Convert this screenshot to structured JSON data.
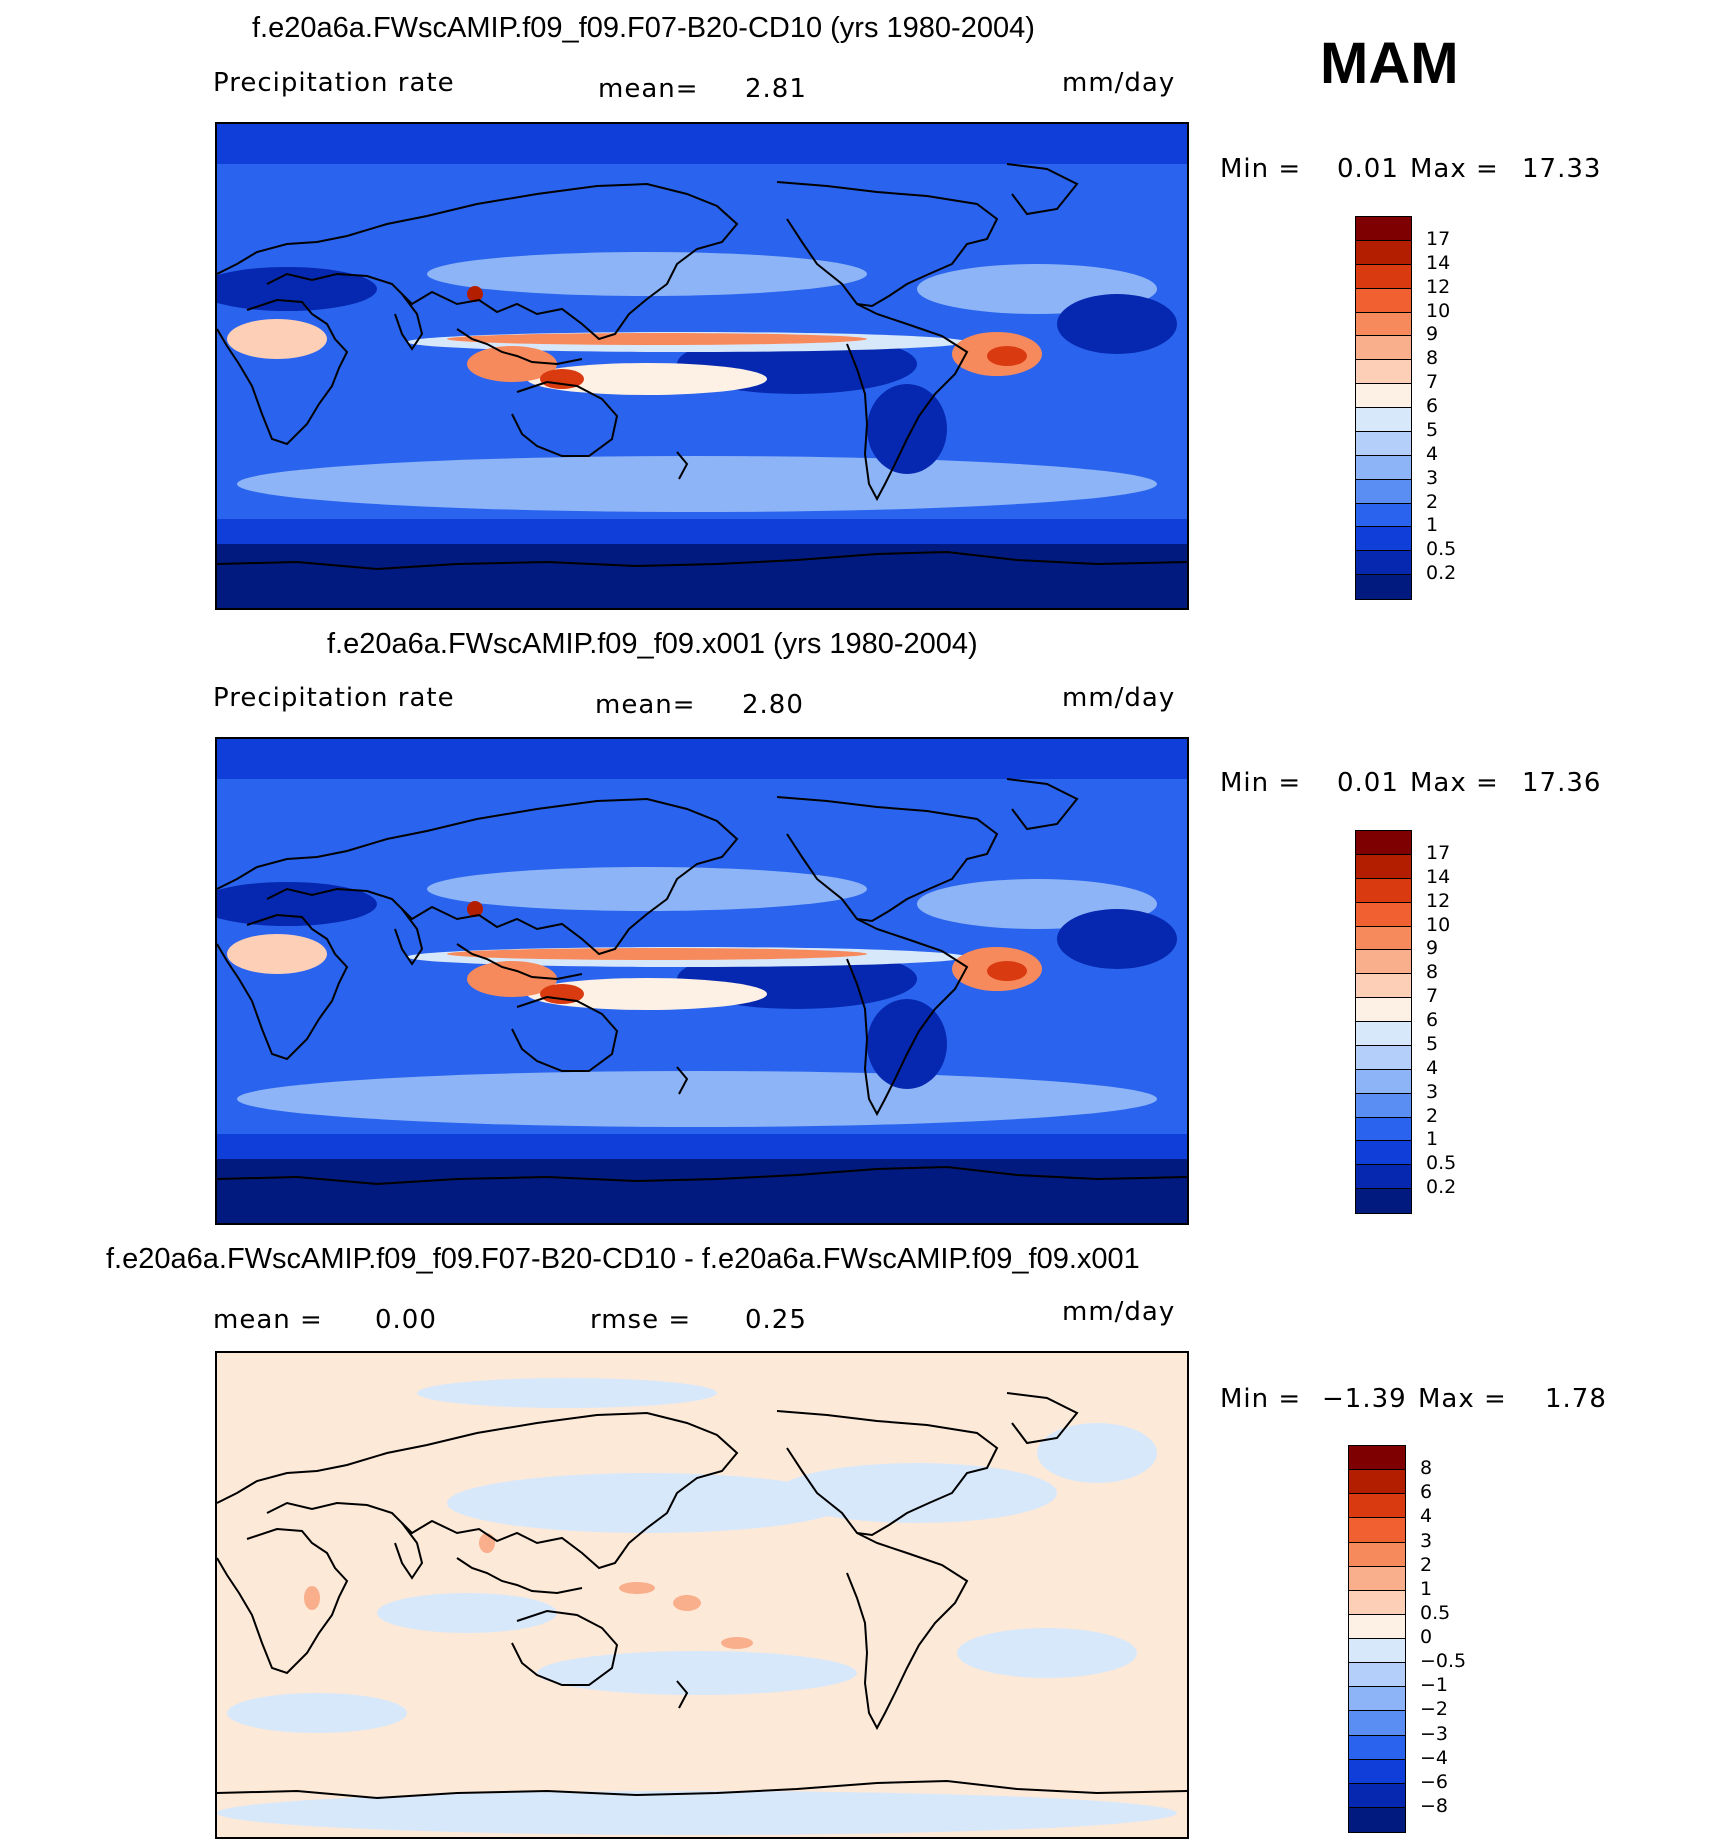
{
  "season": "MAM",
  "panels": [
    {
      "title": "f.e20a6a.FWscAMIP.f09_f09.F07-B20-CD10 (yrs 1980-2004)",
      "variable": "Precipitation rate",
      "stat1_label": "mean=",
      "stat1_value": "2.81",
      "units": "mm/day",
      "min_label": "Min =",
      "min_value": "0.01",
      "max_label": "Max =",
      "max_value": "17.33",
      "colorbar_labels": [
        "17",
        "14",
        "12",
        "10",
        "9",
        "8",
        "7",
        "6",
        "5",
        "4",
        "3",
        "2",
        "1",
        "0.5",
        "0.2"
      ],
      "colorbar_colors": [
        "#7f0000",
        "#b31d00",
        "#d93a10",
        "#f06030",
        "#f78a5c",
        "#f9ae8c",
        "#fccfb6",
        "#fdf0e4",
        "#d8e8fb",
        "#b4d0fa",
        "#8cb4f7",
        "#5a8ef3",
        "#2a64ee",
        "#0f3fd8",
        "#0628b0",
        "#001a80"
      ],
      "map_style": "full"
    },
    {
      "title": "f.e20a6a.FWscAMIP.f09_f09.x001 (yrs 1980-2004)",
      "variable": "Precipitation rate",
      "stat1_label": "mean=",
      "stat1_value": "2.80",
      "units": "mm/day",
      "min_label": "Min =",
      "min_value": "0.01",
      "max_label": "Max =",
      "max_value": "17.36",
      "colorbar_labels": [
        "17",
        "14",
        "12",
        "10",
        "9",
        "8",
        "7",
        "6",
        "5",
        "4",
        "3",
        "2",
        "1",
        "0.5",
        "0.2"
      ],
      "colorbar_colors": [
        "#7f0000",
        "#b31d00",
        "#d93a10",
        "#f06030",
        "#f78a5c",
        "#f9ae8c",
        "#fccfb6",
        "#fdf0e4",
        "#d8e8fb",
        "#b4d0fa",
        "#8cb4f7",
        "#5a8ef3",
        "#2a64ee",
        "#0f3fd8",
        "#0628b0",
        "#001a80"
      ],
      "map_style": "full"
    },
    {
      "title": "f.e20a6a.FWscAMIP.f09_f09.F07-B20-CD10 - f.e20a6a.FWscAMIP.f09_f09.x001",
      "stat1_label": "mean =",
      "stat1_value": "0.00",
      "stat2_label": "rmse =",
      "stat2_value": "0.25",
      "units": "mm/day",
      "min_label": "Min =",
      "min_value": "−1.39",
      "max_label": "Max =",
      "max_value": "1.78",
      "colorbar_labels": [
        "8",
        "6",
        "4",
        "3",
        "2",
        "1",
        "0.5",
        "0",
        "−0.5",
        "−1",
        "−2",
        "−3",
        "−4",
        "−6",
        "−8"
      ],
      "colorbar_colors": [
        "#7f0000",
        "#b31d00",
        "#d93a10",
        "#f06030",
        "#f78a5c",
        "#f9ae8c",
        "#fccfb6",
        "#fdf0e4",
        "#d8e8fb",
        "#b4d0fa",
        "#8cb4f7",
        "#5a8ef3",
        "#2a64ee",
        "#0f3fd8",
        "#0628b0",
        "#001a80"
      ],
      "map_style": "diff"
    }
  ]
}
